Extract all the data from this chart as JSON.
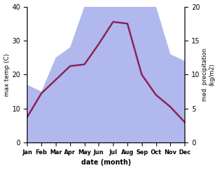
{
  "months": [
    "Jan",
    "Feb",
    "Mar",
    "Apr",
    "May",
    "Jun",
    "Jul",
    "Aug",
    "Sep",
    "Oct",
    "Nov",
    "Dec"
  ],
  "month_positions": [
    0,
    1,
    2,
    3,
    4,
    5,
    6,
    7,
    8,
    9,
    10,
    11
  ],
  "max_temp": [
    7.5,
    14.5,
    18.5,
    22.5,
    23.0,
    29.0,
    35.5,
    35.0,
    20.0,
    14.0,
    10.5,
    6.0
  ],
  "precipitation": [
    8.5,
    7.5,
    12.5,
    14.0,
    20.0,
    22.0,
    40.0,
    38.0,
    20.0,
    20.0,
    13.0,
    12.0
  ],
  "temp_color": "#8B2252",
  "precip_color_fill": "#b0b8ee",
  "ylabel_left": "max temp (C)",
  "ylabel_right": "med. precipitation\n(kg/m2)",
  "xlabel": "date (month)",
  "ylim_left": [
    0,
    40
  ],
  "ylim_right": [
    0,
    20
  ],
  "yticks_left": [
    0,
    10,
    20,
    30,
    40
  ],
  "yticks_right": [
    0,
    5,
    10,
    15,
    20
  ],
  "background_color": "#ffffff",
  "line_width": 1.8
}
